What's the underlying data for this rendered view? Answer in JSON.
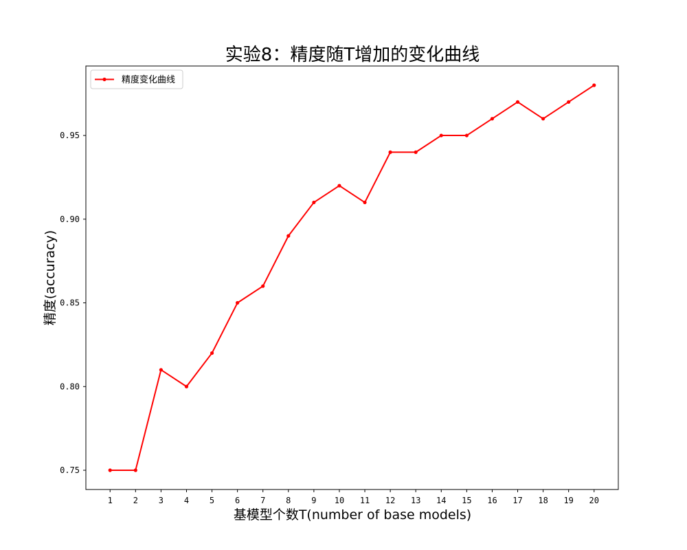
{
  "chart_data": {
    "type": "line",
    "title": "实验8：精度随T增加的变化曲线",
    "xlabel": "基模型个数T(number of base models)",
    "ylabel": "精度(accuracy)",
    "x": [
      1,
      2,
      3,
      4,
      5,
      6,
      7,
      8,
      9,
      10,
      11,
      12,
      13,
      14,
      15,
      16,
      17,
      18,
      19,
      20
    ],
    "series": [
      {
        "name": "精度变化曲线",
        "color": "#ff0000",
        "marker": "circle",
        "values": [
          0.75,
          0.75,
          0.81,
          0.8,
          0.82,
          0.85,
          0.86,
          0.89,
          0.91,
          0.92,
          0.91,
          0.94,
          0.94,
          0.95,
          0.95,
          0.96,
          0.97,
          0.96,
          0.97,
          0.98
        ]
      }
    ],
    "xticks": [
      "1",
      "2",
      "3",
      "4",
      "5",
      "6",
      "7",
      "8",
      "9",
      "10",
      "11",
      "12",
      "13",
      "14",
      "15",
      "16",
      "17",
      "18",
      "19",
      "20"
    ],
    "yticks": [
      "0.75",
      "0.80",
      "0.85",
      "0.90",
      "0.95"
    ],
    "xlim": [
      0.05,
      20.95
    ],
    "ylim": [
      0.7385,
      0.9915
    ],
    "grid": false,
    "legend_position": "upper-left"
  }
}
